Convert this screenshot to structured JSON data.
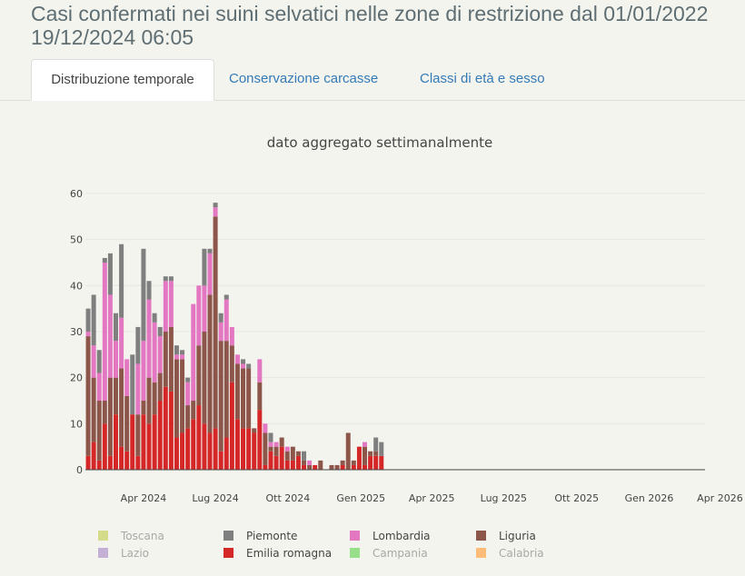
{
  "header": {
    "title_line1": "Casi confermati nei suini selvatici nelle zone di restrizione dal 01/01/2022",
    "title_line2": "19/12/2024 06:05"
  },
  "tabs": [
    {
      "label": "Distribuzione temporale",
      "active": true
    },
    {
      "label": "Conservazione carcasse",
      "active": false
    },
    {
      "label": "Classi di età e sesso",
      "active": false
    }
  ],
  "chart_data": {
    "type": "bar",
    "stacked": true,
    "title": "dato aggregato settimanalmente",
    "xlabel": "",
    "ylabel": "",
    "ylim": [
      0,
      60
    ],
    "yticks": [
      0,
      10,
      20,
      30,
      40,
      50,
      60
    ],
    "xlim_weeks": [
      0,
      112
    ],
    "xticks": [
      {
        "label": "Apr 2024",
        "week": 10.5
      },
      {
        "label": "Lug 2024",
        "week": 23.5
      },
      {
        "label": "Ott 2024",
        "week": 36.6
      },
      {
        "label": "Gen 2025",
        "week": 49.8
      },
      {
        "label": "Apr 2025",
        "week": 62.6
      },
      {
        "label": "Lug 2025",
        "week": 75.6
      },
      {
        "label": "Ott 2025",
        "week": 88.8
      },
      {
        "label": "Gen 2026",
        "week": 101.9
      },
      {
        "label": "Apr 2026",
        "week": 114.7
      }
    ],
    "legend": [
      {
        "name": "Toscana",
        "color": "#d4dc8c",
        "visible": false
      },
      {
        "name": "Piemonte",
        "color": "#7f7f7f",
        "visible": true
      },
      {
        "name": "Lombardia",
        "color": "#e377c2",
        "visible": true
      },
      {
        "name": "Liguria",
        "color": "#8c564b",
        "visible": true
      },
      {
        "name": "Lazio",
        "color": "#c5b0d5",
        "visible": false
      },
      {
        "name": "Emilia romagna",
        "color": "#d62728",
        "visible": true
      },
      {
        "name": "Campania",
        "color": "#98df8a",
        "visible": false
      },
      {
        "name": "Calabria",
        "color": "#ffbb78",
        "visible": false
      }
    ],
    "stack_order": [
      "Emilia romagna",
      "Liguria",
      "Lombardia",
      "Piemonte"
    ],
    "series": [
      {
        "name": "Emilia romagna",
        "values": [
          3,
          6,
          2,
          10,
          3,
          12,
          5,
          4,
          12,
          3,
          12,
          10,
          12,
          15,
          18,
          17,
          7,
          8,
          9,
          11,
          14,
          10,
          8,
          9,
          4,
          7,
          19,
          11,
          9,
          9,
          8,
          13,
          1,
          4,
          3,
          5,
          2,
          2,
          3,
          1,
          0,
          1,
          0,
          0,
          0,
          0,
          1,
          0,
          1,
          5,
          1,
          3,
          3,
          3
        ]
      },
      {
        "name": "Liguria",
        "values": [
          26,
          14,
          13,
          5,
          17,
          8,
          17,
          12,
          0,
          9,
          3,
          10,
          7,
          6,
          12,
          14,
          17,
          16,
          5,
          4,
          13,
          20,
          30,
          46,
          24,
          21,
          8,
          12,
          13,
          13,
          1,
          6,
          7,
          1,
          2,
          2,
          2,
          3,
          1,
          1,
          1,
          0,
          2,
          0,
          1,
          1,
          1,
          8,
          1,
          0,
          4,
          1,
          1,
          0
        ]
      },
      {
        "name": "Lombardia",
        "values": [
          1,
          7,
          6,
          30,
          18,
          8,
          11,
          8,
          0,
          11,
          13,
          17,
          13,
          8,
          11,
          10,
          1,
          1,
          5,
          21,
          13,
          10,
          9,
          2,
          4,
          9,
          4,
          2,
          1,
          0,
          0,
          5,
          2,
          1,
          1,
          0,
          1,
          0,
          0,
          0,
          1,
          0,
          0,
          0,
          0,
          0,
          0,
          0,
          0,
          0,
          1,
          0,
          0,
          0
        ]
      },
      {
        "name": "Piemonte",
        "values": [
          5,
          11,
          5,
          1,
          9,
          6,
          16,
          0,
          13,
          8,
          20,
          4,
          2,
          2,
          1,
          1,
          2,
          1,
          1,
          0,
          0,
          8,
          1,
          1,
          2,
          1,
          0,
          0,
          1,
          1,
          0,
          0,
          0,
          2,
          0,
          0,
          0,
          0,
          0,
          2,
          0,
          0,
          0,
          0,
          0,
          0,
          0,
          0,
          0,
          0,
          0,
          0,
          3,
          3
        ]
      }
    ]
  }
}
